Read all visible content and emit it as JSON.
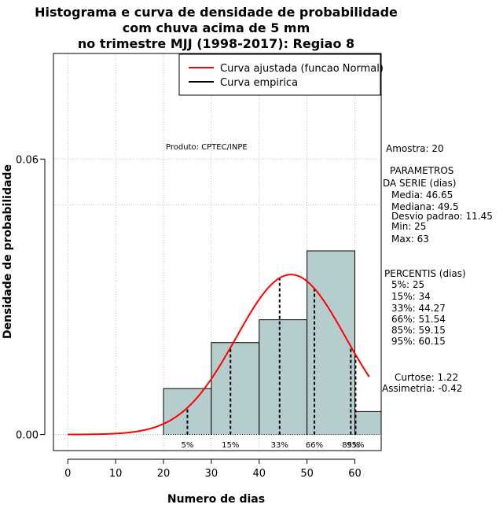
{
  "chart_data": {
    "type": "bar",
    "title": [
      "Histograma e curva de densidade de probabilidade",
      "com chuva acima de 5 mm",
      "no trimestre MJJ (1998-2017): Regiao 8"
    ],
    "xlabel": "Numero de dias",
    "ylabel": "Densidade de probabilidade",
    "xlim": [
      -3,
      65.5
    ],
    "ylim": [
      -0.0035,
      0.083
    ],
    "xticks": [
      0,
      10,
      20,
      30,
      40,
      50,
      60
    ],
    "yticks": [
      0.0,
      0.06
    ],
    "ytick_labels": [
      "0.00",
      "0.06"
    ],
    "grid": true,
    "bins": [
      {
        "x0": 20,
        "x1": 30,
        "density": 0.01
      },
      {
        "x0": 30,
        "x1": 40,
        "density": 0.02
      },
      {
        "x0": 40,
        "x1": 50,
        "density": 0.025
      },
      {
        "x0": 50,
        "x1": 60,
        "density": 0.04
      },
      {
        "x0": 60,
        "x1": 70,
        "density": 0.005
      }
    ],
    "hline_y": 0.05,
    "normal_curve": {
      "mean": 46.65,
      "sd": 11.45,
      "x_range": [
        0,
        63
      ]
    },
    "percentiles": [
      {
        "label": "5%",
        "x": 25
      },
      {
        "label": "15%",
        "x": 34
      },
      {
        "label": "33%",
        "x": 44.27
      },
      {
        "label": "66%",
        "x": 51.54
      },
      {
        "label": "85%",
        "x": 59.15
      },
      {
        "label": "95%",
        "x": 60.15
      }
    ],
    "legend": {
      "position": "top-right",
      "entries": [
        {
          "label": "Curva ajustada (funcao Normal)",
          "color": "#ff0000"
        },
        {
          "label": "Curva empirica",
          "color": "#000000"
        }
      ]
    },
    "product_note": "Produto: CPTEC/INPE",
    "side_text": [
      "Amostra: 20",
      "PARAMETROS",
      "DA SERIE (dias)",
      "Media: 46.65",
      "Mediana: 49.5",
      "Desvio padrao: 11.45",
      "Min: 25",
      "Max: 63",
      "PERCENTIS (dias)",
      "5%: 25",
      "15%: 34",
      "33%: 44.27",
      "66%: 51.54",
      "85%: 59.15",
      "95%: 60.15",
      "Curtose: 1.22",
      "Assimetria: -0.42"
    ],
    "colors": {
      "bar_fill": "#b6cdcd",
      "curve": "#ff0000",
      "grid": "#b0b0b0"
    }
  }
}
